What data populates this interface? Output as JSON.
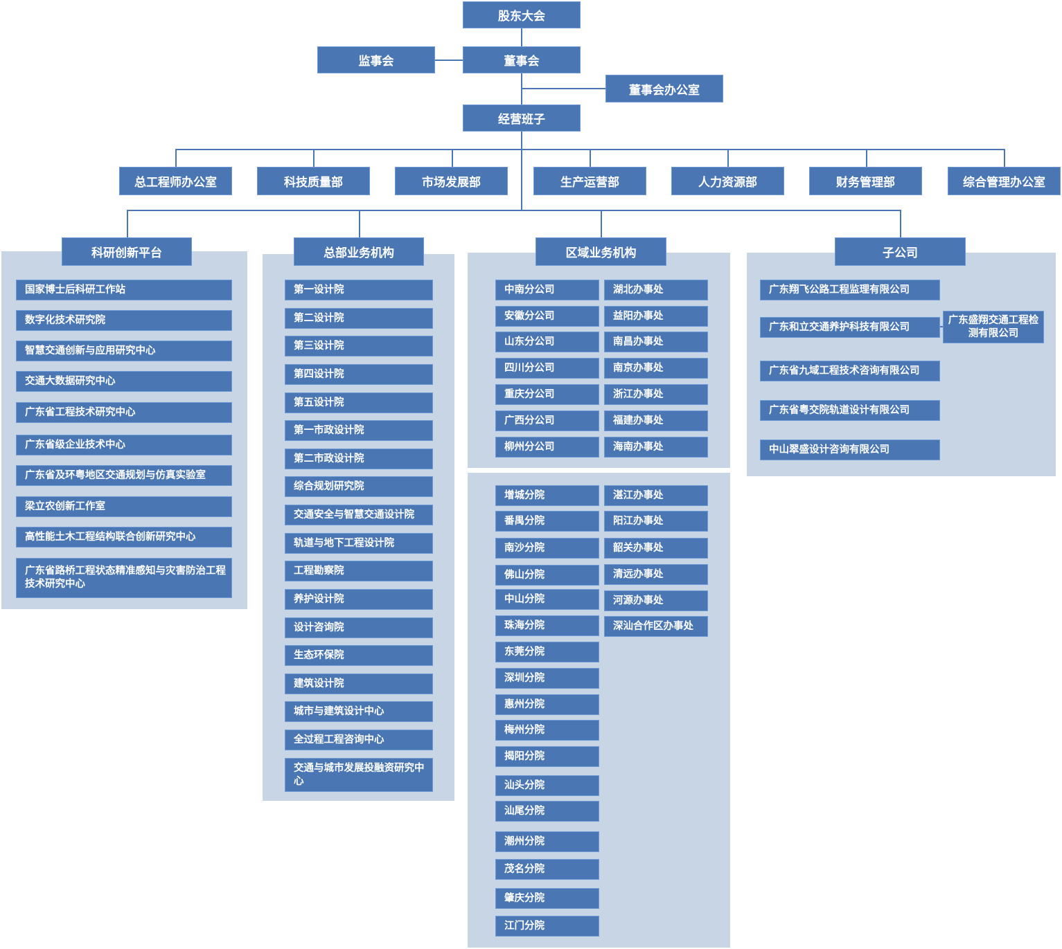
{
  "top": {
    "shareholders": "股东大会",
    "supervisors": "监事会",
    "board": "董事会",
    "board_office": "董事会办公室",
    "management": "经营班子"
  },
  "departments": [
    "总工程师办公室",
    "科技质量部",
    "市场发展部",
    "生产运营部",
    "人力资源部",
    "财务管理部",
    "综合管理办公室"
  ],
  "groups": {
    "research": {
      "title": "科研创新平台",
      "items": [
        "国家博士后科研工作站",
        "数字化技术研究院",
        "智慧交通创新与应用研究中心",
        "交通大数据研究中心",
        "广东省工程技术研究中心",
        "广东省级企业技术中心",
        "广东省及环粤地区交通规划与仿真实验室",
        "梁立农创新工作室",
        "高性能土木工程结构联合创新研究中心",
        "广东省路桥工程状态精准感知与灾害防治工程技术研究中心"
      ]
    },
    "headquarters": {
      "title": "总部业务机构",
      "items": [
        "第一设计院",
        "第二设计院",
        "第三设计院",
        "第四设计院",
        "第五设计院",
        "第一市政设计院",
        "第二市政设计院",
        "综合规划研究院",
        "交通安全与智慧交通设计院",
        "轨道与地下工程设计院",
        "工程勘察院",
        "养护设计院",
        "设计咨询院",
        "生态环保院",
        "建筑设计院",
        "城市与建筑设计中心",
        "全过程工程咨询中心",
        "交通与城市发展投融资研究中心"
      ]
    },
    "regional": {
      "title": "区域业务机构",
      "branches": [
        "中南分公司",
        "安徽分公司",
        "山东分公司",
        "四川分公司",
        "重庆分公司",
        "广西分公司",
        "柳州分公司"
      ],
      "offices": [
        "湖北办事处",
        "益阳办事处",
        "南昌办事处",
        "南京办事处",
        "浙江办事处",
        "福建办事处",
        "海南办事处"
      ],
      "sub_branches": [
        "增城分院",
        "番禺分院",
        "南沙分院",
        "佛山分院",
        "中山分院",
        "珠海分院",
        "东莞分院",
        "深圳分院",
        "惠州分院",
        "梅州分院",
        "揭阳分院",
        "汕头分院",
        "汕尾分院",
        "潮州分院",
        "茂名分院",
        "肇庆分院",
        "江门分院"
      ],
      "local_offices": [
        "湛江办事处",
        "阳江办事处",
        "韶关办事处",
        "清远办事处",
        "河源办事处",
        "深汕合作区办事处"
      ]
    },
    "subsidiaries": {
      "title": "子公司",
      "items": [
        "广东翔飞公路工程监理有限公司",
        "广东和立交通养护科技有限公司",
        "广东省九域工程技术咨询有限公司",
        "广东省粤交院轨道设计有限公司",
        "中山翠盛设计咨询有限公司"
      ],
      "child": "广东盛翔交通工程检测有限公司"
    }
  },
  "colors": {
    "box": "#4a77b4",
    "panel": "#c8d5e5",
    "text": "#ffffff"
  }
}
